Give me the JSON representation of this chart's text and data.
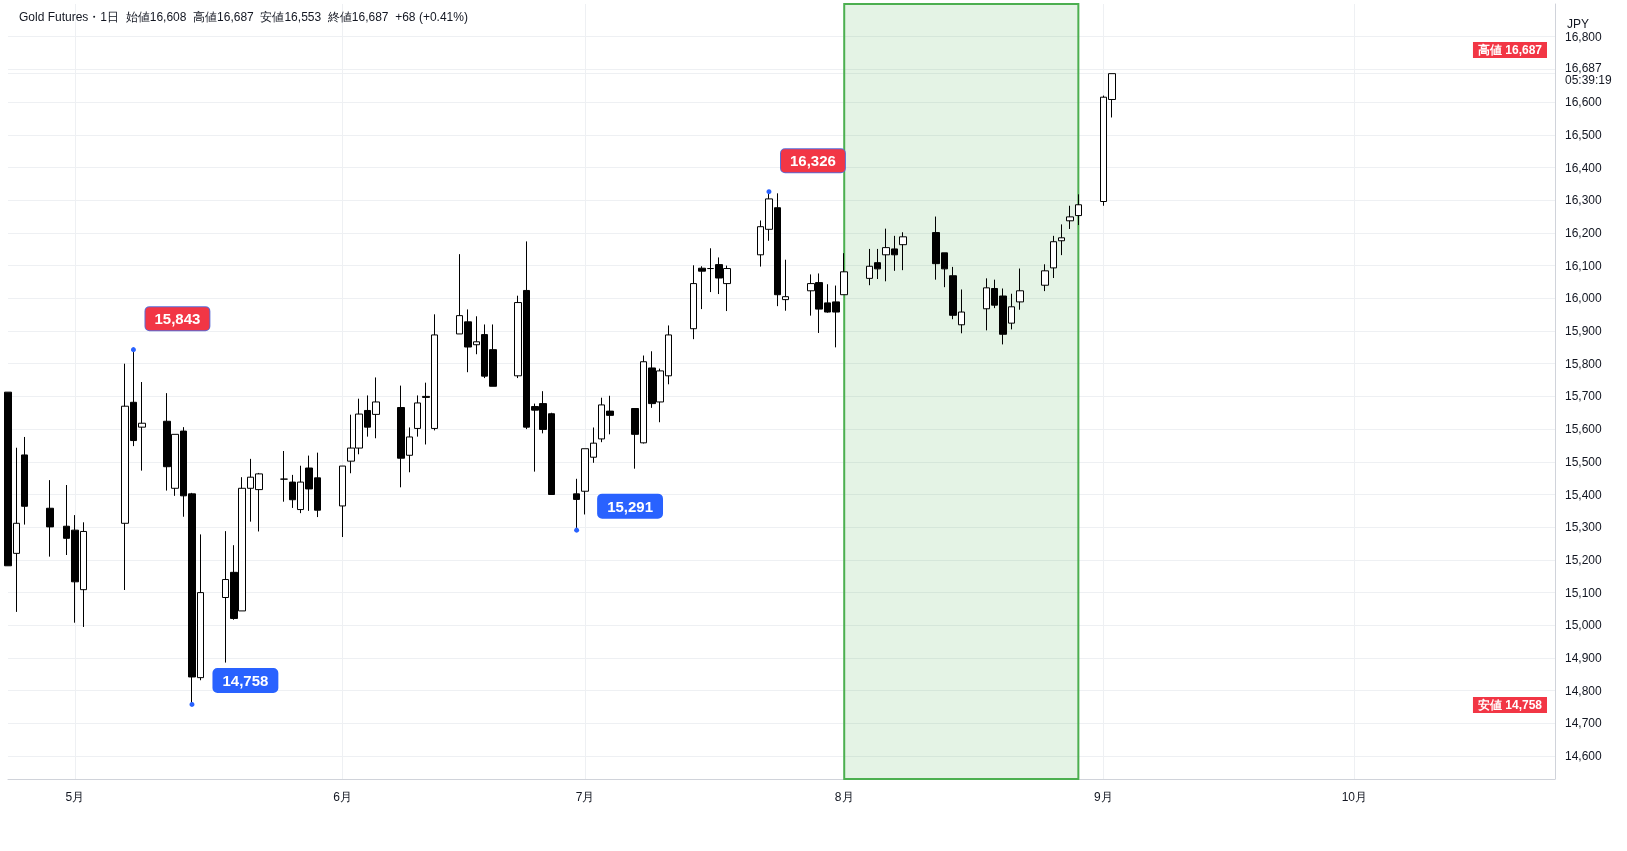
{
  "chart_data": {
    "type": "candlestick",
    "title": "Gold Futures・1日  始値16,608  高値16,687  安値16,553  終値16,687  +68 (+0.41%)",
    "ylabel": "JPY",
    "color": "#000000",
    "grid": true,
    "x": [
      "--04-23",
      "--04-24",
      "--04-25",
      "--04-28",
      "--04-30",
      "--05-01",
      "--05-02",
      "--05-07",
      "--05-08",
      "--05-09",
      "--05-12",
      "--05-13",
      "--05-14",
      "--05-15",
      "--05-16",
      "--05-19",
      "--05-20",
      "--05-21",
      "--05-22",
      "--05-23",
      "--05-26",
      "--05-27",
      "--05-28",
      "--05-29",
      "--05-30",
      "--06-02",
      "--06-03",
      "--06-04",
      "--06-05",
      "--06-06",
      "--06-09",
      "--06-10",
      "--06-11",
      "--06-12",
      "--06-13",
      "--06-16",
      "--06-17",
      "--06-18",
      "--06-19",
      "--06-20",
      "--06-23",
      "--06-24",
      "--06-25",
      "--06-26",
      "--06-27",
      "--06-30",
      "--07-01",
      "--07-02",
      "--07-03",
      "--07-04",
      "--07-07",
      "--07-08",
      "--07-09",
      "--07-10",
      "--07-11",
      "--07-14",
      "--07-15",
      "--07-16",
      "--07-17",
      "--07-18",
      "--07-22",
      "--07-23",
      "--07-24",
      "--07-25",
      "--07-28",
      "--07-29",
      "--07-30",
      "--07-31",
      "--08-01",
      "--08-04",
      "--08-05",
      "--08-06",
      "--08-07",
      "--08-08",
      "--08-12",
      "--08-13",
      "--08-14",
      "--08-15",
      "--08-18",
      "--08-19",
      "--08-20",
      "--08-21",
      "--08-22",
      "--08-25",
      "--08-26",
      "--08-27",
      "--08-28",
      "--08-29",
      "--09-01",
      "--09-02"
    ],
    "ohlc": [
      [
        15713,
        15713,
        15182,
        15182
      ],
      [
        15220,
        15543,
        15041,
        15312
      ],
      [
        15521,
        15576,
        15308,
        15364
      ],
      [
        15358,
        15444,
        15210,
        15301
      ],
      [
        15303,
        15429,
        15215,
        15266
      ],
      [
        15291,
        15337,
        15008,
        15133
      ],
      [
        15109,
        15315,
        14995,
        15287
      ],
      [
        15312,
        15800,
        15108,
        15670
      ],
      [
        15682,
        15843,
        15548,
        15565
      ],
      [
        15606,
        15744,
        15473,
        15618
      ],
      [
        15624,
        15710,
        15412,
        15485
      ],
      [
        15419,
        15584,
        15396,
        15584
      ],
      [
        15594,
        15606,
        15332,
        15396
      ],
      [
        15402,
        15405,
        14758,
        14842
      ],
      [
        14840,
        15278,
        14832,
        15100
      ],
      [
        15085,
        15288,
        14886,
        15140
      ],
      [
        15162,
        15245,
        15017,
        15021
      ],
      [
        15044,
        15453,
        15044,
        15419
      ],
      [
        15419,
        15509,
        15317,
        15453
      ],
      [
        15415,
        15466,
        15287,
        15463
      ],
      [
        15447,
        15533,
        15378,
        15447
      ],
      [
        15438,
        15460,
        15359,
        15384
      ],
      [
        15354,
        15488,
        15343,
        15438
      ],
      [
        15481,
        15519,
        15350,
        15417
      ],
      [
        15451,
        15528,
        15331,
        15352
      ],
      [
        15365,
        15487,
        15270,
        15487
      ],
      [
        15502,
        15644,
        15465,
        15542
      ],
      [
        15542,
        15693,
        15523,
        15646
      ],
      [
        15657,
        15703,
        15577,
        15606
      ],
      [
        15645,
        15758,
        15572,
        15683
      ],
      [
        15666,
        15733,
        15422,
        15511
      ],
      [
        15520,
        15605,
        15468,
        15576
      ],
      [
        15602,
        15703,
        15577,
        15680
      ],
      [
        15700,
        15742,
        15553,
        15697
      ],
      [
        15602,
        15951,
        15596,
        15888
      ],
      [
        15891,
        16135,
        15891,
        15947
      ],
      [
        15928,
        15966,
        15774,
        15851
      ],
      [
        15858,
        15945,
        15829,
        15867
      ],
      [
        15889,
        15920,
        15756,
        15762
      ],
      [
        15843,
        15920,
        15731,
        15731
      ],
      [
        15763,
        16008,
        15756,
        15987
      ],
      [
        16024,
        16174,
        15600,
        15606
      ],
      [
        15669,
        15678,
        15470,
        15658
      ],
      [
        15678,
        15716,
        15587,
        15599
      ],
      [
        15647,
        15650,
        15400,
        15400
      ],
      [
        15402,
        15448,
        15291,
        15385
      ],
      [
        15410,
        15540,
        15339,
        15540
      ],
      [
        15514,
        15605,
        15497,
        15557
      ],
      [
        15570,
        15696,
        15560,
        15674
      ],
      [
        15655,
        15702,
        15584,
        15642
      ],
      [
        15663,
        15663,
        15479,
        15584
      ],
      [
        15558,
        15825,
        15556,
        15806
      ],
      [
        15787,
        15838,
        15665,
        15678
      ],
      [
        15683,
        15785,
        15621,
        15778
      ],
      [
        15763,
        15917,
        15737,
        15888
      ],
      [
        15907,
        16101,
        15875,
        16045
      ],
      [
        16092,
        16098,
        15967,
        16083
      ],
      [
        16091,
        16153,
        16019,
        16091
      ],
      [
        16103,
        16125,
        16013,
        16062
      ],
      [
        16045,
        16100,
        15961,
        16091
      ],
      [
        16133,
        16238,
        16097,
        16219
      ],
      [
        16211,
        16326,
        16176,
        16304
      ],
      [
        16277,
        16321,
        15976,
        16011
      ],
      [
        15996,
        16118,
        15962,
        16005
      ],
      [
        16023,
        16073,
        15947,
        16045
      ],
      [
        16048,
        16076,
        15894,
        15967
      ],
      [
        15986,
        16043,
        15956,
        15958
      ],
      [
        15989,
        16039,
        15850,
        15958
      ],
      [
        16011,
        16138,
        16011,
        16081
      ],
      [
        16061,
        16151,
        16040,
        16098
      ],
      [
        16109,
        16151,
        16059,
        16090
      ],
      [
        16133,
        16213,
        16052,
        16155
      ],
      [
        16151,
        16191,
        16084,
        16133
      ],
      [
        16164,
        16202,
        16086,
        16188
      ],
      [
        16201,
        16250,
        16057,
        16106
      ],
      [
        16139,
        16139,
        16034,
        16090
      ],
      [
        16069,
        16096,
        15936,
        15948
      ],
      [
        15919,
        16027,
        15893,
        15958
      ],
      [
        15968,
        16061,
        15902,
        16032
      ],
      [
        16030,
        16057,
        15970,
        15979
      ],
      [
        16007,
        16030,
        15859,
        15890
      ],
      [
        15924,
        16014,
        15905,
        15974
      ],
      [
        15989,
        16091,
        15965,
        16023
      ],
      [
        16040,
        16104,
        16022,
        16084
      ],
      [
        16093,
        16191,
        16062,
        16173
      ],
      [
        16176,
        16226,
        16132,
        16185
      ],
      [
        16237,
        16283,
        16212,
        16249
      ],
      [
        16253,
        16318,
        16224,
        16286
      ],
      [
        16296,
        16620,
        16283,
        16615
      ],
      [
        16608,
        16687,
        16553,
        16687
      ]
    ],
    "xlim": [
      "--04-23",
      "--10-25"
    ],
    "xticks": [
      {
        "value": "--05-01",
        "label": "5月"
      },
      {
        "value": "--06-02",
        "label": "6月"
      },
      {
        "value": "--07-01",
        "label": "7月"
      },
      {
        "value": "--08-01",
        "label": "8月"
      },
      {
        "value": "--09-01",
        "label": "9月"
      },
      {
        "value": "--10-01",
        "label": "10月"
      }
    ],
    "ylim": [
      14530,
      16900
    ],
    "yticks": [
      {
        "value": 14600,
        "label": "14,600"
      },
      {
        "value": 14700,
        "label": "14,700"
      },
      {
        "value": 14800,
        "label": "14,800"
      },
      {
        "value": 14900,
        "label": "14,900"
      },
      {
        "value": 15000,
        "label": "15,000"
      },
      {
        "value": 15100,
        "label": "15,100"
      },
      {
        "value": 15200,
        "label": "15,200"
      },
      {
        "value": 15300,
        "label": "15,300"
      },
      {
        "value": 15400,
        "label": "15,400"
      },
      {
        "value": 15500,
        "label": "15,500"
      },
      {
        "value": 15600,
        "label": "15,600"
      },
      {
        "value": 15700,
        "label": "15,700"
      },
      {
        "value": 15800,
        "label": "15,800"
      },
      {
        "value": 15900,
        "label": "15,900"
      },
      {
        "value": 16000,
        "label": "16,000"
      },
      {
        "value": 16100,
        "label": "16,100"
      },
      {
        "value": 16200,
        "label": "16,200"
      },
      {
        "value": 16300,
        "label": "16,300"
      },
      {
        "value": 16400,
        "label": "16,400"
      },
      {
        "value": 16500,
        "label": "16,500"
      },
      {
        "value": 16600,
        "label": "16,600"
      },
      {
        "value": 16687,
        "label": "16,687\n05:39:19"
      },
      {
        "value": 16700,
        "label": null
      },
      {
        "value": 16800,
        "label": "16,800"
      }
    ],
    "bands": [
      {
        "axis": "x",
        "from": "--08-01",
        "to": "--08-29",
        "color": "#4caf50"
      }
    ],
    "annotations": [
      {
        "text": "15,843",
        "x": "--05-08",
        "y": 15843
      },
      {
        "text": "14,758",
        "x": "--05-15",
        "y": 14758
      },
      {
        "text": "15,291",
        "x": "--06-30",
        "y": 15291
      },
      {
        "text": "16,326",
        "x": "--07-23",
        "y": 16326
      },
      "高値 16,687",
      "安値 14,758"
    ]
  }
}
